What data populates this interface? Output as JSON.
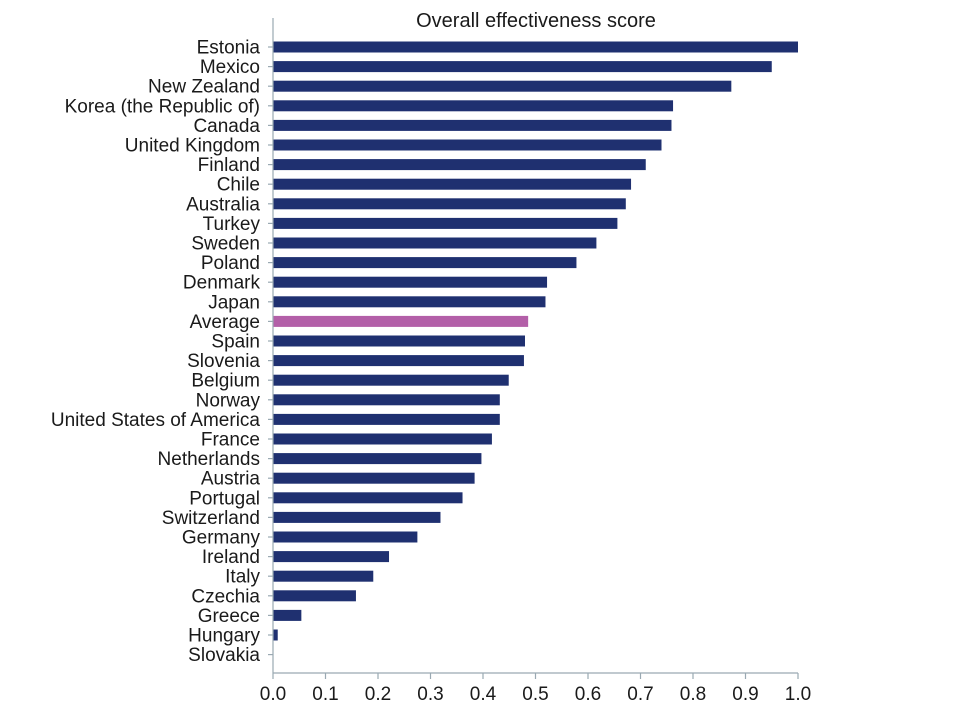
{
  "chart_data": {
    "type": "bar",
    "orientation": "horizontal",
    "title": "Overall effectiveness score",
    "xlabel": "",
    "ylabel": "",
    "xlim": [
      0,
      1
    ],
    "x_ticks": [
      "0.0",
      "0.1",
      "0.2",
      "0.3",
      "0.4",
      "0.5",
      "0.6",
      "0.7",
      "0.8",
      "0.9",
      "1.0"
    ],
    "grid": false,
    "legend": "none",
    "colors": {
      "bar": "#1f3070",
      "highlight": "#b35fa8"
    },
    "categories": [
      "Estonia",
      "Mexico",
      "New Zealand",
      "Korea (the Republic of)",
      "Canada",
      "United Kingdom",
      "Finland",
      "Chile",
      "Australia",
      "Turkey",
      "Sweden",
      "Poland",
      "Denmark",
      "Japan",
      "Average",
      "Spain",
      "Slovenia",
      "Belgium",
      "Norway",
      "United States of America",
      "France",
      "Netherlands",
      "Austria",
      "Portugal",
      "Switzerland",
      "Germany",
      "Ireland",
      "Italy",
      "Czechia",
      "Greece",
      "Hungary",
      "Slovakia"
    ],
    "values": [
      1.0,
      0.95,
      0.873,
      0.762,
      0.759,
      0.74,
      0.71,
      0.682,
      0.672,
      0.656,
      0.616,
      0.578,
      0.522,
      0.519,
      0.486,
      0.48,
      0.478,
      0.449,
      0.432,
      0.432,
      0.417,
      0.397,
      0.384,
      0.361,
      0.319,
      0.275,
      0.221,
      0.191,
      0.158,
      0.054,
      0.009,
      0.0
    ],
    "highlight_category": "Average"
  }
}
